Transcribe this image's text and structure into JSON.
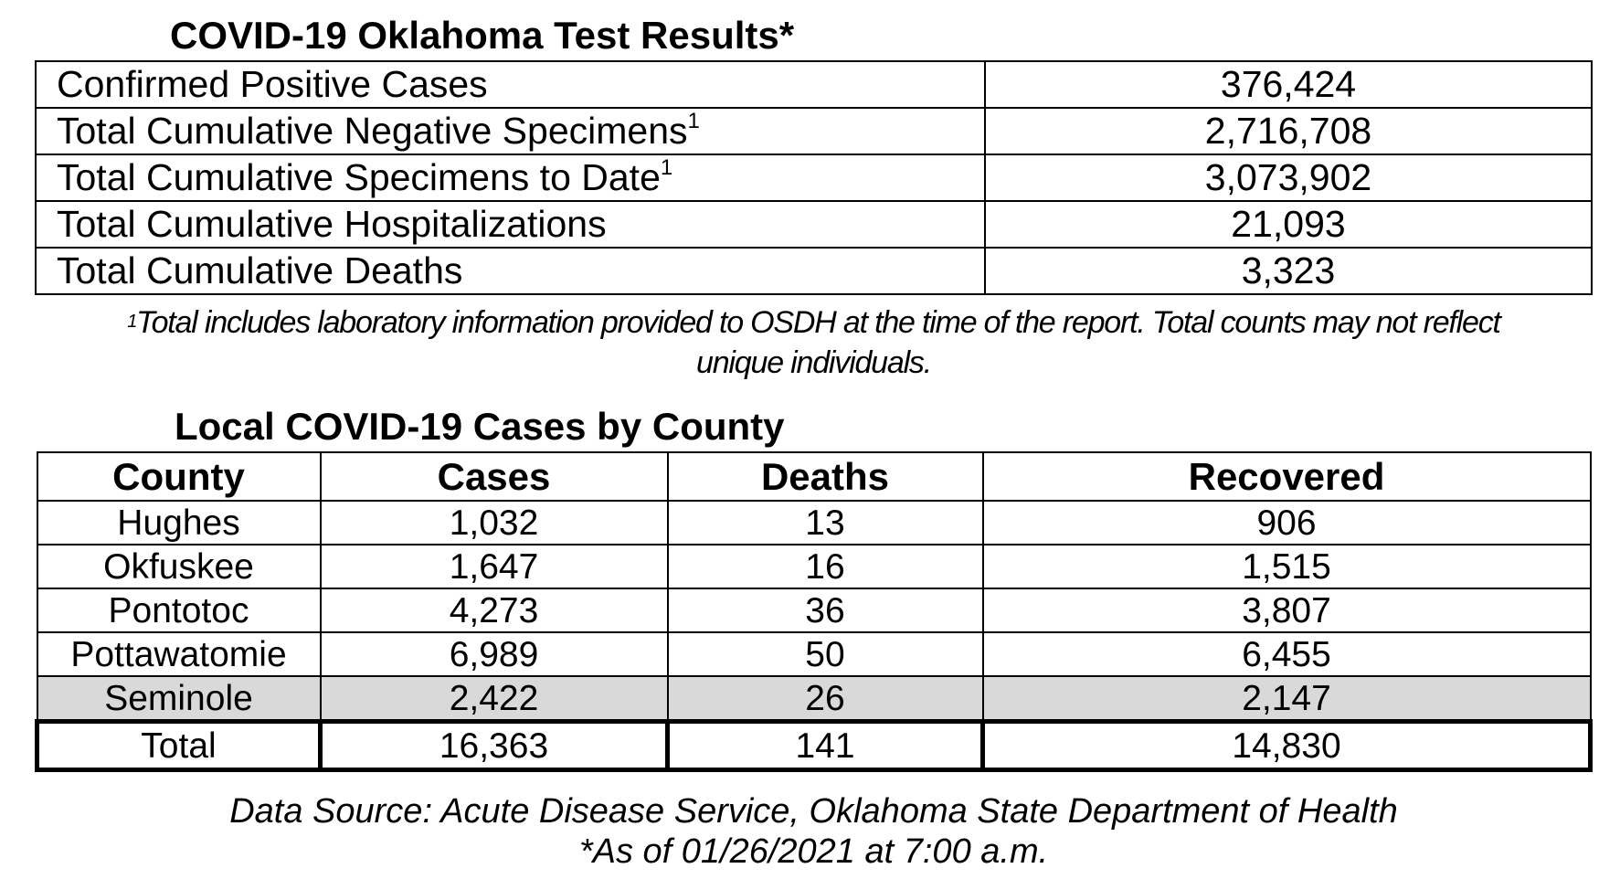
{
  "test_results": {
    "title": "COVID-19 Oklahoma Test Results*",
    "rows": [
      {
        "label": "Confirmed Positive Cases",
        "sup": "",
        "value": "376,424"
      },
      {
        "label": "Total Cumulative Negative Specimens",
        "sup": "1",
        "value": "2,716,708"
      },
      {
        "label": "Total Cumulative Specimens to Date",
        "sup": "1",
        "value": "3,073,902"
      },
      {
        "label": "Total Cumulative Hospitalizations",
        "sup": "",
        "value": "21,093"
      },
      {
        "label": "Total Cumulative Deaths",
        "sup": "",
        "value": "3,323"
      }
    ],
    "footnote_marker": "1",
    "footnote_line1": "Total includes laboratory information provided to OSDH at the time of the report. Total counts may not reflect",
    "footnote_line2": "unique individuals."
  },
  "county_cases": {
    "title": "Local COVID-19 Cases by County",
    "headers": [
      "County",
      "Cases",
      "Deaths",
      "Recovered"
    ],
    "rows": [
      [
        "Hughes",
        "1,032",
        "13",
        "906"
      ],
      [
        "Okfuskee",
        "1,647",
        "16",
        "1,515"
      ],
      [
        "Pontotoc",
        "4,273",
        "36",
        "3,807"
      ],
      [
        "Pottawatomie",
        "6,989",
        "50",
        "6,455"
      ],
      [
        "Seminole",
        "2,422",
        "26",
        "2,147"
      ]
    ],
    "total": [
      "Total",
      "16,363",
      "141",
      "14,830"
    ],
    "highlight_color": "#d9d9d9"
  },
  "source": {
    "line1": "Data Source: Acute Disease Service, Oklahoma State Department of Health",
    "line2": "*As of 01/26/2021 at 7:00 a.m."
  }
}
